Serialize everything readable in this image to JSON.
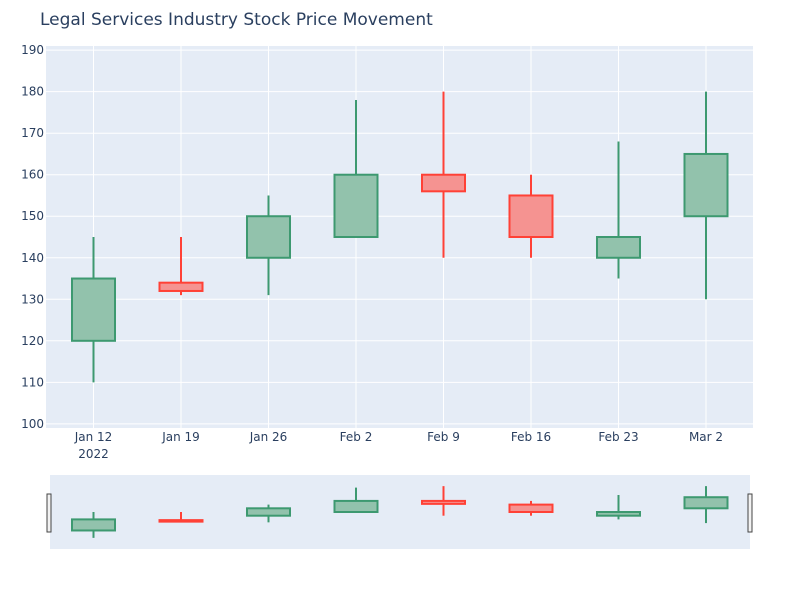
{
  "chart_data": {
    "type": "candlestick",
    "title": "Legal Services Industry Stock Price Movement",
    "x_ticks": [
      "Jan 12",
      "Jan 19",
      "Jan 26",
      "Feb 2",
      "Feb 9",
      "Feb 16",
      "Feb 23",
      "Mar 2"
    ],
    "x_year_label": "2022",
    "y_ticks": [
      100,
      110,
      120,
      130,
      140,
      150,
      160,
      170,
      180,
      190
    ],
    "ylim": [
      99,
      191
    ],
    "grid": true,
    "rangeslider": true,
    "colors": {
      "increasing_line": "#3D9970",
      "increasing_fill": "#92C2AC",
      "decreasing_line": "#FF4136",
      "decreasing_fill": "#F59391",
      "plot_bg": "#E5ECF6",
      "grid": "#FFFFFF",
      "text": "#2A3F5F"
    },
    "candles": [
      {
        "date": "2022-01-12",
        "open": 120,
        "high": 145,
        "low": 110,
        "close": 135
      },
      {
        "date": "2022-01-19",
        "open": 134,
        "high": 145,
        "low": 131,
        "close": 132
      },
      {
        "date": "2022-01-26",
        "open": 140,
        "high": 155,
        "low": 131,
        "close": 150
      },
      {
        "date": "2022-02-02",
        "open": 145,
        "high": 178,
        "low": 145,
        "close": 160
      },
      {
        "date": "2022-02-09",
        "open": 160,
        "high": 180,
        "low": 140,
        "close": 156
      },
      {
        "date": "2022-02-16",
        "open": 155,
        "high": 160,
        "low": 140,
        "close": 145
      },
      {
        "date": "2022-02-23",
        "open": 140,
        "high": 168,
        "low": 135,
        "close": 145
      },
      {
        "date": "2022-03-02",
        "open": 150,
        "high": 180,
        "low": 130,
        "close": 165
      }
    ]
  }
}
